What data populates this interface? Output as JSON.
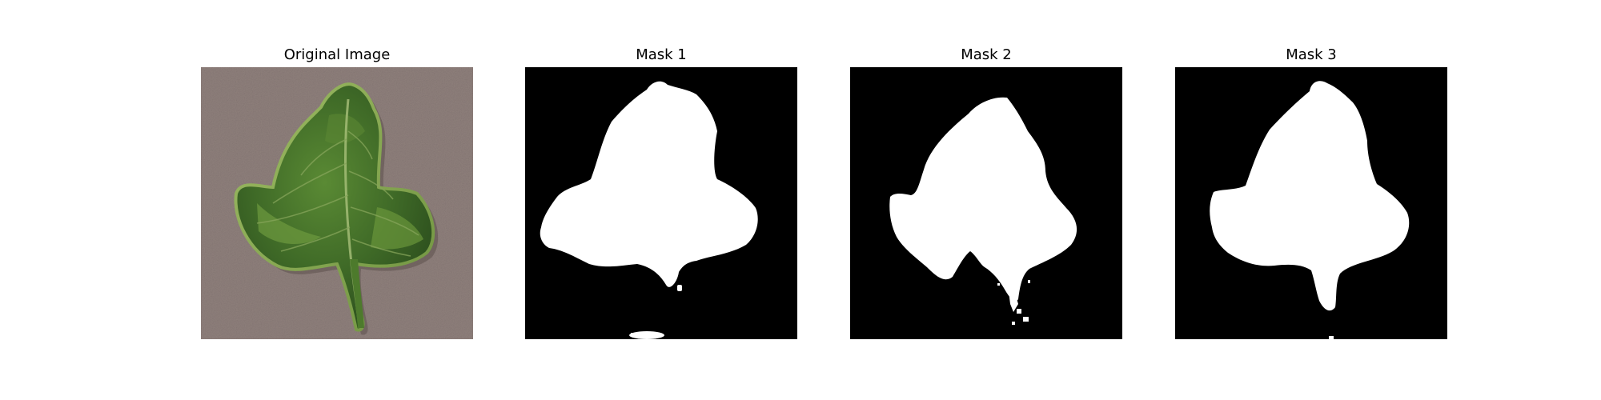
{
  "figure": {
    "panels": [
      {
        "title": "Original Image",
        "kind": "photo"
      },
      {
        "title": "Mask 1",
        "kind": "mask"
      },
      {
        "title": "Mask 2",
        "kind": "mask"
      },
      {
        "title": "Mask 3",
        "kind": "mask"
      }
    ]
  },
  "colors": {
    "background_photo": "#8f807c",
    "leaf_dark": "#2f5420",
    "leaf_mid": "#4e7a2f",
    "leaf_light": "#86a84f",
    "mask_background": "#000000",
    "mask_foreground": "#ffffff"
  }
}
